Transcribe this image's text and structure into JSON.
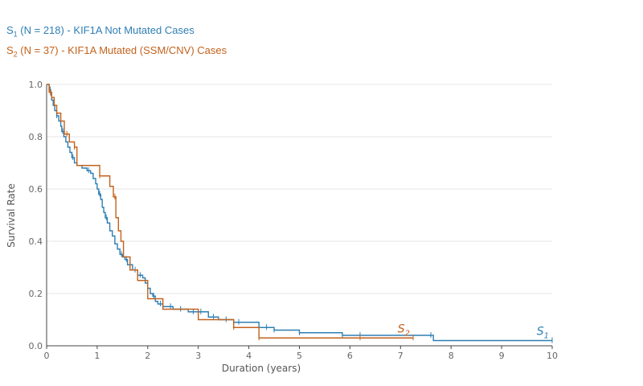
{
  "legend": [
    {
      "prefix": "S",
      "sub": "1",
      "text": " (N = 218) - KIF1A Not Mutated Cases",
      "color": "#2e7fb4"
    },
    {
      "prefix": "S",
      "sub": "2",
      "text": " (N = 37) - KIF1A Mutated (SSM/CNV) Cases",
      "color": "#c3621c"
    }
  ],
  "chart_data": {
    "type": "line",
    "xlabel": "Duration (years)",
    "ylabel": "Survival Rate",
    "xlim": [
      0,
      10
    ],
    "ylim": [
      0,
      1
    ],
    "x_ticks": [
      "0",
      "1",
      "2",
      "3",
      "4",
      "5",
      "6",
      "7",
      "8",
      "9",
      "10"
    ],
    "y_ticks": [
      "0.0",
      "0.2",
      "0.4",
      "0.6",
      "0.8",
      "1.0"
    ],
    "grid": true,
    "series": [
      {
        "label_prefix": "S",
        "label_sub": "1",
        "color": "#2e7fb4",
        "step": true,
        "x": [
          0,
          0.05,
          0.08,
          0.1,
          0.13,
          0.16,
          0.2,
          0.24,
          0.28,
          0.3,
          0.34,
          0.38,
          0.42,
          0.46,
          0.5,
          0.55,
          0.6,
          0.7,
          0.8,
          0.87,
          0.92,
          0.97,
          1.0,
          1.03,
          1.07,
          1.1,
          1.13,
          1.16,
          1.2,
          1.25,
          1.3,
          1.35,
          1.4,
          1.45,
          1.5,
          1.55,
          1.6,
          1.7,
          1.8,
          1.9,
          1.95,
          2.0,
          2.05,
          2.1,
          2.15,
          2.2,
          2.3,
          2.5,
          2.8,
          3.2,
          3.4,
          3.7,
          4.2,
          4.5,
          5.0,
          5.85,
          7.65,
          10.0
        ],
        "y": [
          1.0,
          0.98,
          0.96,
          0.94,
          0.92,
          0.9,
          0.88,
          0.86,
          0.84,
          0.82,
          0.8,
          0.78,
          0.76,
          0.74,
          0.72,
          0.7,
          0.69,
          0.68,
          0.67,
          0.66,
          0.64,
          0.62,
          0.6,
          0.58,
          0.56,
          0.53,
          0.51,
          0.49,
          0.47,
          0.44,
          0.42,
          0.39,
          0.37,
          0.35,
          0.34,
          0.33,
          0.31,
          0.29,
          0.27,
          0.26,
          0.24,
          0.22,
          0.2,
          0.19,
          0.17,
          0.16,
          0.15,
          0.14,
          0.13,
          0.11,
          0.1,
          0.09,
          0.07,
          0.06,
          0.05,
          0.04,
          0.02,
          0.02
        ],
        "censor": [
          0.07,
          0.2,
          0.32,
          0.52,
          0.83,
          1.05,
          1.18,
          1.48,
          1.58,
          1.75,
          1.85,
          2.12,
          2.25,
          2.45,
          2.65,
          2.9,
          3.05,
          3.3,
          3.55,
          3.8,
          4.35,
          4.5,
          5.0,
          5.85,
          6.2,
          7.6,
          10.0
        ]
      },
      {
        "label_prefix": "S",
        "label_sub": "2",
        "color": "#c3621c",
        "step": true,
        "x": [
          0,
          0.05,
          0.1,
          0.15,
          0.2,
          0.28,
          0.35,
          0.45,
          0.55,
          0.6,
          1.05,
          1.25,
          1.32,
          1.37,
          1.42,
          1.47,
          1.52,
          1.65,
          1.8,
          2.0,
          2.3,
          3.0,
          3.7,
          4.2,
          4.5,
          7.25
        ],
        "y": [
          1.0,
          0.97,
          0.95,
          0.92,
          0.89,
          0.86,
          0.81,
          0.78,
          0.76,
          0.69,
          0.65,
          0.61,
          0.57,
          0.49,
          0.44,
          0.4,
          0.34,
          0.29,
          0.25,
          0.18,
          0.14,
          0.1,
          0.07,
          0.03,
          0.03,
          0.03
        ],
        "censor": [
          0.08,
          0.4,
          0.55,
          1.05,
          1.35,
          3.7,
          4.2,
          6.2,
          7.25
        ]
      }
    ]
  }
}
